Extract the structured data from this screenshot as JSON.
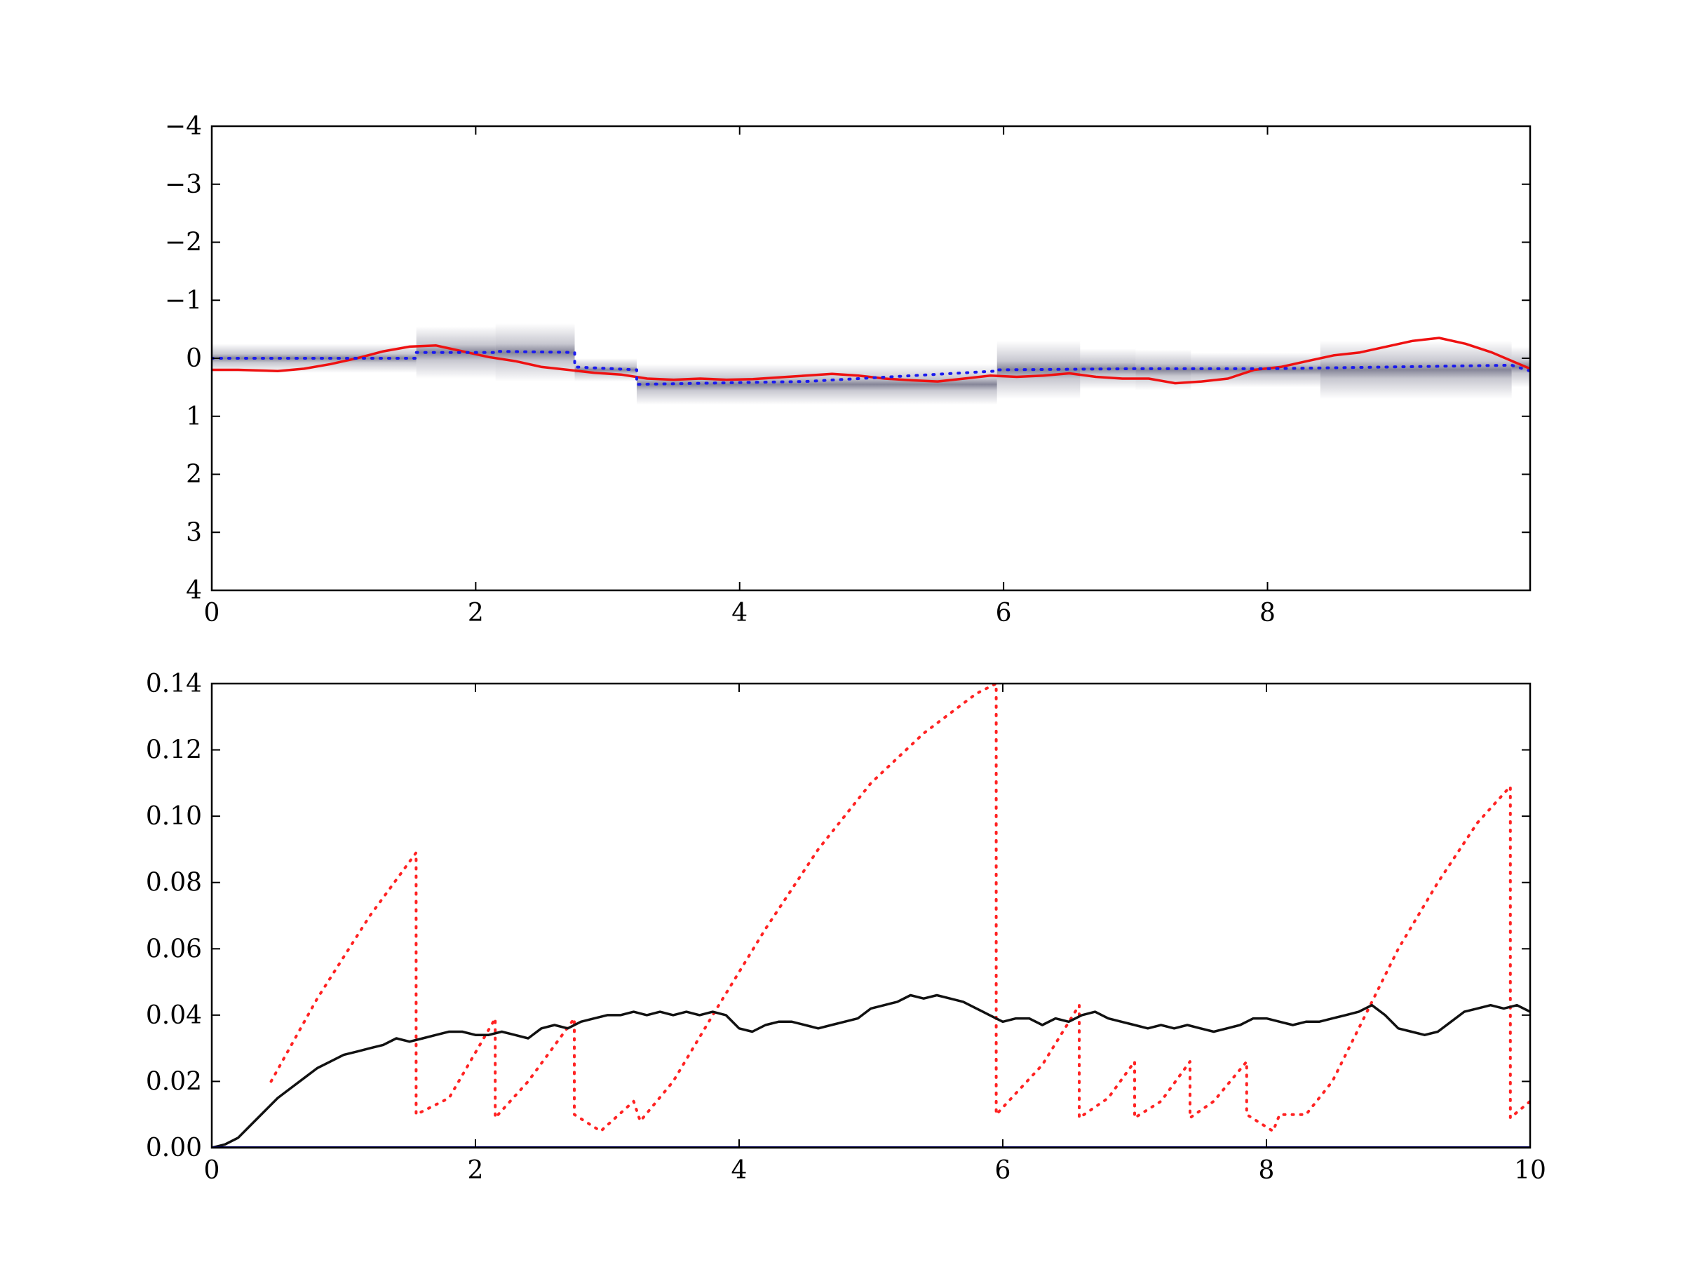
{
  "colors": {
    "solid_red": "#ee1111",
    "dotted_red": "#ff2222",
    "dotted_blue": "#1a1aee",
    "black": "#111111",
    "navy": "#000066",
    "band_dark": "#222244"
  },
  "chart_data": [
    {
      "type": "line",
      "panel": "top",
      "xlim": [
        0,
        9.99
      ],
      "ylim": [
        4,
        -4
      ],
      "y_inverted": true,
      "grid": false,
      "xticks": [
        0,
        2,
        4,
        6,
        8
      ],
      "xtick_labels": [
        "0",
        "2",
        "4",
        "6",
        "8"
      ],
      "yticks": [
        -4,
        -3,
        -2,
        -1,
        0,
        1,
        2,
        3,
        4
      ],
      "ytick_labels": [
        "−4",
        "−3",
        "−2",
        "−1",
        "0",
        "1",
        "2",
        "3",
        "4"
      ],
      "density_band": {
        "description_segments_x": [
          0,
          1.55,
          2.15,
          2.75,
          3.22,
          5.95,
          6.58,
          7.0,
          7.42,
          7.85,
          8.4,
          9.85,
          9.99
        ],
        "center_y": [
          0.0,
          -0.1,
          -0.1,
          0.2,
          0.45,
          0.2,
          0.18,
          0.2,
          0.2,
          0.2,
          0.2,
          0.15,
          0.2
        ],
        "spread": [
          0.25,
          0.45,
          0.5,
          0.2,
          0.35,
          0.5,
          0.35,
          0.35,
          0.3,
          0.3,
          0.5,
          0.35,
          0.2
        ]
      },
      "series": [
        {
          "style": "solid-red",
          "x": [
            0,
            0.2,
            0.5,
            0.7,
            0.9,
            1.1,
            1.3,
            1.5,
            1.7,
            1.9,
            2.1,
            2.3,
            2.5,
            2.7,
            2.9,
            3.1,
            3.3,
            3.5,
            3.7,
            3.9,
            4.1,
            4.3,
            4.5,
            4.7,
            4.9,
            5.1,
            5.3,
            5.5,
            5.7,
            5.9,
            6.1,
            6.3,
            6.5,
            6.7,
            6.9,
            7.1,
            7.3,
            7.5,
            7.7,
            7.9,
            8.1,
            8.3,
            8.5,
            8.7,
            8.9,
            9.1,
            9.3,
            9.5,
            9.7,
            9.99
          ],
          "y": [
            0.2,
            0.2,
            0.22,
            0.18,
            0.1,
            0.0,
            -0.12,
            -0.2,
            -0.22,
            -0.12,
            -0.02,
            0.05,
            0.15,
            0.2,
            0.25,
            0.28,
            0.35,
            0.37,
            0.35,
            0.37,
            0.36,
            0.33,
            0.3,
            0.27,
            0.3,
            0.35,
            0.38,
            0.4,
            0.35,
            0.3,
            0.32,
            0.3,
            0.26,
            0.32,
            0.35,
            0.35,
            0.43,
            0.4,
            0.35,
            0.2,
            0.15,
            0.05,
            -0.05,
            -0.1,
            -0.2,
            -0.3,
            -0.35,
            -0.25,
            -0.1,
            0.18
          ]
        },
        {
          "style": "dotted-blue",
          "x": [
            0,
            1.55,
            1.55,
            2.15,
            2.15,
            2.75,
            2.75,
            3.22,
            3.22,
            4.5,
            5.95,
            5.95,
            7.0,
            8.0,
            9.85,
            9.99
          ],
          "y": [
            0.0,
            0.0,
            -0.1,
            -0.1,
            -0.12,
            -0.1,
            0.15,
            0.2,
            0.45,
            0.4,
            0.22,
            0.2,
            0.18,
            0.18,
            0.12,
            0.22
          ]
        }
      ]
    },
    {
      "type": "line",
      "panel": "bottom",
      "xlim": [
        0,
        10
      ],
      "ylim": [
        0,
        0.14
      ],
      "grid": false,
      "xticks": [
        0,
        2,
        4,
        6,
        8,
        10
      ],
      "xtick_labels": [
        "0",
        "2",
        "4",
        "6",
        "8",
        "10"
      ],
      "yticks": [
        0,
        0.02,
        0.04,
        0.06,
        0.08,
        0.1,
        0.12,
        0.14
      ],
      "ytick_labels": [
        "0.00",
        "0.02",
        "0.04",
        "0.06",
        "0.08",
        "0.10",
        "0.12",
        "0.14"
      ],
      "series": [
        {
          "style": "dotted-red",
          "x": [
            0.45,
            0.8,
            1.2,
            1.55,
            1.55,
            1.8,
            2.15,
            2.15,
            2.4,
            2.75,
            2.75,
            2.95,
            3.2,
            3.25,
            3.5,
            3.8,
            4.2,
            4.6,
            5.0,
            5.4,
            5.8,
            5.95,
            5.95,
            6.3,
            6.58,
            6.58,
            6.8,
            7.0,
            7.0,
            7.2,
            7.42,
            7.42,
            7.6,
            7.85,
            7.85,
            8.05,
            8.1,
            8.3,
            8.5,
            8.75,
            9.0,
            9.3,
            9.6,
            9.85,
            9.85,
            10.0
          ],
          "y": [
            0.02,
            0.045,
            0.07,
            0.089,
            0.01,
            0.015,
            0.039,
            0.009,
            0.02,
            0.039,
            0.01,
            0.005,
            0.014,
            0.008,
            0.02,
            0.04,
            0.066,
            0.09,
            0.11,
            0.125,
            0.137,
            0.14,
            0.01,
            0.025,
            0.043,
            0.009,
            0.015,
            0.026,
            0.009,
            0.014,
            0.026,
            0.009,
            0.014,
            0.026,
            0.01,
            0.005,
            0.01,
            0.01,
            0.02,
            0.04,
            0.06,
            0.08,
            0.098,
            0.109,
            0.009,
            0.014
          ]
        },
        {
          "style": "solid-black",
          "x": [
            0,
            0.1,
            0.2,
            0.3,
            0.4,
            0.5,
            0.6,
            0.7,
            0.8,
            0.9,
            1.0,
            1.1,
            1.2,
            1.3,
            1.4,
            1.5,
            1.6,
            1.7,
            1.8,
            1.9,
            2.0,
            2.1,
            2.2,
            2.3,
            2.4,
            2.5,
            2.6,
            2.7,
            2.8,
            2.9,
            3.0,
            3.1,
            3.2,
            3.3,
            3.4,
            3.5,
            3.6,
            3.7,
            3.8,
            3.9,
            4.0,
            4.1,
            4.2,
            4.3,
            4.4,
            4.5,
            4.6,
            4.7,
            4.8,
            4.9,
            5.0,
            5.1,
            5.2,
            5.3,
            5.4,
            5.5,
            5.6,
            5.7,
            5.8,
            5.9,
            6.0,
            6.1,
            6.2,
            6.3,
            6.4,
            6.5,
            6.6,
            6.7,
            6.8,
            6.9,
            7.0,
            7.1,
            7.2,
            7.3,
            7.4,
            7.5,
            7.6,
            7.7,
            7.8,
            7.9,
            8.0,
            8.1,
            8.2,
            8.3,
            8.4,
            8.5,
            8.6,
            8.7,
            8.8,
            8.9,
            9.0,
            9.1,
            9.2,
            9.3,
            9.4,
            9.5,
            9.6,
            9.7,
            9.8,
            9.9,
            10.0
          ],
          "y": [
            0.0,
            0.001,
            0.003,
            0.007,
            0.011,
            0.015,
            0.018,
            0.021,
            0.024,
            0.026,
            0.028,
            0.029,
            0.03,
            0.031,
            0.033,
            0.032,
            0.033,
            0.034,
            0.035,
            0.035,
            0.034,
            0.034,
            0.035,
            0.034,
            0.033,
            0.036,
            0.037,
            0.036,
            0.038,
            0.039,
            0.04,
            0.04,
            0.041,
            0.04,
            0.041,
            0.04,
            0.041,
            0.04,
            0.041,
            0.04,
            0.036,
            0.035,
            0.037,
            0.038,
            0.038,
            0.037,
            0.036,
            0.037,
            0.038,
            0.039,
            0.042,
            0.043,
            0.044,
            0.046,
            0.045,
            0.046,
            0.045,
            0.044,
            0.042,
            0.04,
            0.038,
            0.039,
            0.039,
            0.037,
            0.039,
            0.038,
            0.04,
            0.041,
            0.039,
            0.038,
            0.037,
            0.036,
            0.037,
            0.036,
            0.037,
            0.036,
            0.035,
            0.036,
            0.037,
            0.039,
            0.039,
            0.038,
            0.037,
            0.038,
            0.038,
            0.039,
            0.04,
            0.041,
            0.043,
            0.04,
            0.036,
            0.035,
            0.034,
            0.035,
            0.038,
            0.041,
            0.042,
            0.043,
            0.042,
            0.043,
            0.041
          ]
        },
        {
          "style": "solid-navy",
          "x": [
            0,
            10
          ],
          "y": [
            0.0,
            0.0
          ]
        }
      ]
    }
  ]
}
